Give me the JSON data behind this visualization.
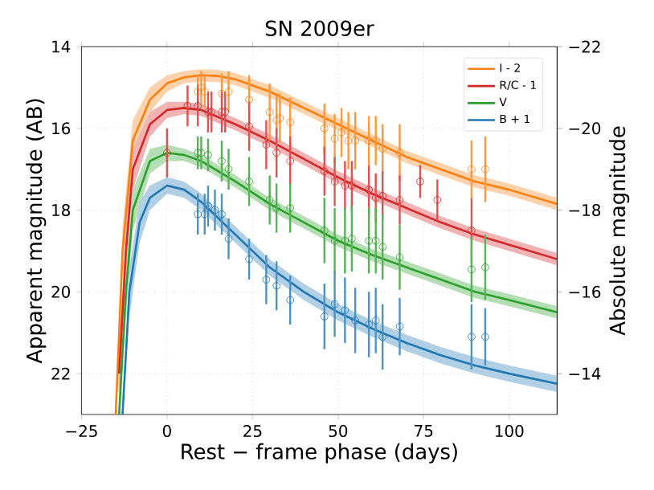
{
  "chart_data": {
    "type": "line",
    "title": "SN 2009er",
    "xlabel": "Rest − frame phase (days)",
    "ylabel": "Apparent magnitude (AB)",
    "y2label": "Absolute magnitude",
    "xlim": [
      -25,
      114
    ],
    "xticks": [
      {
        "value": -25,
        "label": "−25"
      },
      0,
      25,
      50,
      75,
      100
    ],
    "ylim": [
      23,
      14
    ],
    "yticks": [
      14,
      16,
      18,
      20,
      22
    ],
    "y2lim": [
      -13,
      -22
    ],
    "y2ticks": [
      {
        "value": -22,
        "label": "−22"
      },
      {
        "value": -20,
        "label": "−20"
      },
      {
        "value": -18,
        "label": "−18"
      },
      {
        "value": -16,
        "label": "−16"
      },
      {
        "value": -14,
        "label": "−14"
      }
    ],
    "grid": true,
    "legend": "top right",
    "series": [
      {
        "name": "I - 2",
        "marker": "none",
        "color": "#ff7f0e",
        "x": [
          -15,
          -13,
          -10,
          -5,
          0,
          5,
          10,
          15,
          20,
          30,
          40,
          50,
          60,
          70,
          80,
          90,
          100,
          114
        ],
        "values": [
          23,
          19,
          16.3,
          15.3,
          14.9,
          14.75,
          14.7,
          14.72,
          14.8,
          15.1,
          15.5,
          15.9,
          16.3,
          16.7,
          17.0,
          17.3,
          17.5,
          17.85
        ],
        "lower": [
          23,
          18.4,
          15.8,
          15.0,
          14.7,
          14.6,
          14.55,
          14.57,
          14.65,
          14.95,
          15.35,
          15.75,
          16.15,
          16.55,
          16.85,
          17.15,
          17.35,
          17.7
        ],
        "upper": [
          23,
          19.6,
          16.8,
          15.6,
          15.1,
          14.9,
          14.85,
          14.87,
          14.95,
          15.25,
          15.65,
          16.05,
          16.45,
          16.85,
          17.15,
          17.45,
          17.65,
          18.0
        ]
      },
      {
        "name": "R/C - 1",
        "marker": "none",
        "color": "#d62728",
        "x": [
          -14,
          -12,
          -10,
          -5,
          0,
          5,
          10,
          20,
          30,
          40,
          50,
          60,
          70,
          80,
          90,
          100,
          114
        ],
        "values": [
          22,
          19,
          17,
          15.9,
          15.55,
          15.5,
          15.55,
          15.9,
          16.3,
          16.75,
          17.2,
          17.6,
          17.95,
          18.3,
          18.6,
          18.85,
          19.2
        ],
        "lower": [
          21.4,
          18.4,
          16.5,
          15.6,
          15.35,
          15.35,
          15.4,
          15.75,
          16.15,
          16.6,
          17.05,
          17.45,
          17.8,
          18.15,
          18.45,
          18.7,
          19.05
        ],
        "upper": [
          22.6,
          19.6,
          17.5,
          16.2,
          15.75,
          15.65,
          15.7,
          16.05,
          16.45,
          16.9,
          17.35,
          17.75,
          18.1,
          18.45,
          18.75,
          19.0,
          19.35
        ]
      },
      {
        "name": "V",
        "marker": "none",
        "color": "#2ca02c",
        "x": [
          -14,
          -12,
          -10,
          -5,
          0,
          5,
          10,
          20,
          30,
          40,
          50,
          60,
          70,
          80,
          90,
          100,
          114
        ],
        "values": [
          23,
          20,
          18,
          16.8,
          16.6,
          16.65,
          16.8,
          17.3,
          17.85,
          18.3,
          18.75,
          19.1,
          19.4,
          19.7,
          20.0,
          20.2,
          20.5
        ],
        "lower": [
          23,
          19.4,
          17.5,
          16.5,
          16.4,
          16.5,
          16.65,
          17.15,
          17.7,
          18.15,
          18.6,
          18.95,
          19.25,
          19.55,
          19.85,
          20.05,
          20.35
        ],
        "upper": [
          23,
          20.6,
          18.5,
          17.1,
          16.8,
          16.8,
          16.95,
          17.45,
          18.0,
          18.45,
          18.9,
          19.25,
          19.55,
          19.85,
          20.15,
          20.35,
          20.65
        ]
      },
      {
        "name": "B + 1",
        "marker": "none",
        "color": "#1f77b4",
        "x": [
          -13,
          -11,
          -8,
          -5,
          0,
          5,
          10,
          20,
          30,
          40,
          50,
          60,
          70,
          80,
          90,
          100,
          114
        ],
        "values": [
          23,
          20,
          18.3,
          17.7,
          17.4,
          17.5,
          17.8,
          18.6,
          19.4,
          20.0,
          20.5,
          20.9,
          21.25,
          21.55,
          21.8,
          22.0,
          22.25
        ],
        "lower": [
          23,
          19.4,
          17.8,
          17.4,
          17.2,
          17.3,
          17.6,
          18.4,
          19.2,
          19.8,
          20.3,
          20.7,
          21.05,
          21.35,
          21.6,
          21.8,
          22.05
        ],
        "upper": [
          23,
          20.6,
          18.8,
          18.0,
          17.6,
          17.7,
          18.0,
          18.8,
          19.6,
          20.2,
          20.7,
          21.1,
          21.45,
          21.75,
          22.0,
          22.2,
          22.45
        ]
      },
      {
        "type": "scatter",
        "marker": "circle",
        "color": "#ff7f0e",
        "x": [
          9,
          10,
          11,
          16,
          18,
          24,
          30,
          32,
          33,
          36,
          46,
          49,
          51,
          53,
          55,
          59,
          61,
          63,
          68,
          89,
          93
        ],
        "values": [
          15.1,
          15.0,
          15.1,
          15.15,
          15.1,
          15.3,
          15.6,
          15.8,
          15.75,
          15.85,
          16.0,
          16.25,
          16.1,
          16.3,
          16.3,
          16.3,
          16.3,
          16.5,
          16.6,
          17.0,
          17.0
        ],
        "errors": [
          0.4,
          0.4,
          0.4,
          0.5,
          0.5,
          0.6,
          0.7,
          0.6,
          0.6,
          0.6,
          0.6,
          0.6,
          0.6,
          0.7,
          0.7,
          0.6,
          0.6,
          0.6,
          0.7,
          0.7,
          0.8
        ]
      },
      {
        "type": "scatter",
        "marker": "circle",
        "color": "#d62728",
        "x": [
          0,
          6,
          9,
          12,
          13,
          16,
          17,
          24,
          29,
          32,
          36,
          46,
          49,
          52,
          54,
          59,
          61,
          63,
          68,
          74,
          79,
          89
        ],
        "values": [
          16.6,
          15.45,
          15.45,
          15.6,
          15.6,
          15.6,
          15.6,
          15.95,
          16.4,
          16.6,
          16.8,
          17.05,
          17.3,
          17.4,
          17.4,
          17.5,
          17.7,
          17.65,
          17.75,
          17.3,
          17.75,
          18.5
        ],
        "errors": [
          0.6,
          0.5,
          0.5,
          0.5,
          0.5,
          0.5,
          0.5,
          0.6,
          0.6,
          0.6,
          0.6,
          0.6,
          0.6,
          0.6,
          0.6,
          0.6,
          0.6,
          0.6,
          0.6,
          0.4,
          0.5,
          0.8
        ]
      },
      {
        "type": "scatter",
        "marker": "circle",
        "color": "#2ca02c",
        "x": [
          9,
          10,
          12,
          16,
          18,
          24,
          30,
          32,
          36,
          46,
          49,
          52,
          54,
          59,
          61,
          63,
          68,
          89,
          93
        ],
        "values": [
          16.6,
          16.6,
          16.65,
          16.8,
          17.0,
          17.3,
          17.75,
          17.95,
          17.95,
          18.5,
          18.75,
          18.75,
          18.7,
          18.75,
          18.75,
          18.9,
          19.15,
          19.45,
          19.4
        ],
        "errors": [
          0.4,
          0.4,
          0.4,
          0.5,
          0.5,
          0.6,
          0.6,
          0.6,
          0.6,
          0.8,
          0.8,
          0.8,
          0.8,
          0.8,
          0.8,
          0.8,
          0.8,
          0.8,
          0.8
        ]
      },
      {
        "type": "scatter",
        "marker": "circle",
        "color": "#1f77b4",
        "x": [
          9,
          11,
          12,
          14,
          16,
          18,
          24,
          29,
          32,
          36,
          46,
          49,
          52,
          55,
          59,
          61,
          63,
          68,
          89,
          93
        ],
        "values": [
          18.1,
          18.1,
          17.9,
          18.0,
          18.1,
          18.7,
          19.2,
          19.7,
          19.85,
          20.2,
          20.6,
          20.3,
          20.45,
          20.7,
          20.8,
          20.7,
          21.1,
          20.85,
          21.1,
          21.1
        ],
        "errors": [
          0.5,
          0.5,
          0.5,
          0.5,
          0.5,
          0.5,
          0.5,
          0.6,
          0.6,
          0.6,
          0.8,
          0.8,
          0.8,
          0.8,
          0.8,
          0.8,
          0.8,
          0.7,
          0.8,
          0.7
        ]
      }
    ]
  }
}
